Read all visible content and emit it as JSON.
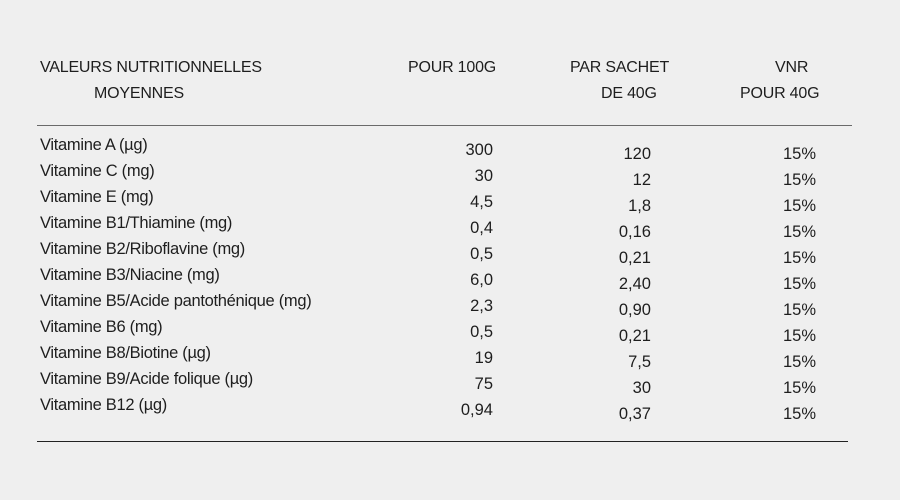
{
  "header": {
    "col1_line1": "VALEURS NUTRITIONNELLES",
    "col1_line2": "MOYENNES",
    "col2": "POUR 100G",
    "col3_line1": "PAR SACHET",
    "col3_line2": "DE 40G",
    "col4_line1": "VNR",
    "col4_line2": "POUR 40G"
  },
  "rows": [
    {
      "name": "Vitamine A (µg)",
      "per100": "300",
      "perSachet": "120",
      "vnr": "15%"
    },
    {
      "name": "Vitamine C (mg)",
      "per100": "30",
      "perSachet": "12",
      "vnr": "15%"
    },
    {
      "name": "Vitamine E (mg)",
      "per100": "4,5",
      "perSachet": "1,8",
      "vnr": "15%"
    },
    {
      "name": "Vitamine B1/Thiamine (mg)",
      "per100": "0,4",
      "perSachet": "0,16",
      "vnr": "15%"
    },
    {
      "name": "Vitamine B2/Riboflavine (mg)",
      "per100": "0,5",
      "perSachet": "0,21",
      "vnr": "15%"
    },
    {
      "name": "Vitamine B3/Niacine (mg)",
      "per100": "6,0",
      "perSachet": "2,40",
      "vnr": "15%"
    },
    {
      "name": "Vitamine B5/Acide pantothénique (mg)",
      "per100": "2,3",
      "perSachet": "0,90",
      "vnr": "15%"
    },
    {
      "name": "Vitamine B6 (mg)",
      "per100": "0,5",
      "perSachet": "0,21",
      "vnr": "15%"
    },
    {
      "name": "Vitamine B8/Biotine (µg)",
      "per100": "19",
      "perSachet": "7,5",
      "vnr": "15%"
    },
    {
      "name": "Vitamine B9/Acide folique (µg)",
      "per100": "75",
      "perSachet": "30",
      "vnr": "15%"
    },
    {
      "name": "Vitamine B12 (µg)",
      "per100": "0,94",
      "perSachet": "0,37",
      "vnr": "15%"
    }
  ]
}
